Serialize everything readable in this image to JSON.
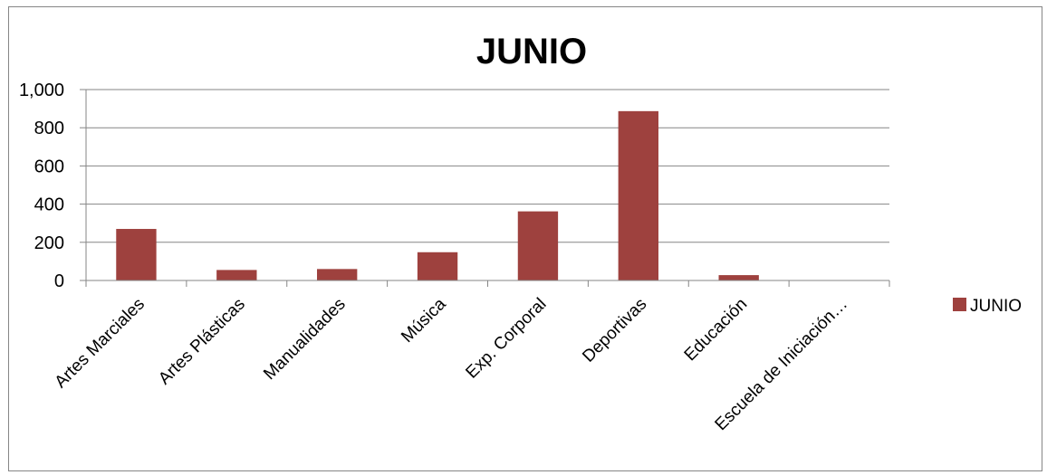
{
  "chart_data": {
    "type": "bar",
    "title": "JUNIO",
    "xlabel": "",
    "ylabel": "",
    "categories": [
      "Artes Marciales",
      "Artes Plásticas",
      "Manualidades",
      "Música",
      "Exp. Corporal",
      "Deportivas",
      "Educación",
      "Escuela de Iniciación…"
    ],
    "series": [
      {
        "name": "JUNIO",
        "values": [
          270,
          55,
          60,
          148,
          362,
          887,
          28,
          0
        ],
        "color": "#9E413E"
      }
    ],
    "ylim": [
      0,
      1000
    ],
    "yticks": [
      0,
      200,
      400,
      600,
      800,
      1000
    ],
    "ytick_labels": [
      "0",
      "200",
      "400",
      "600",
      "800",
      "1,000"
    ],
    "grid": true,
    "legend_position": "right",
    "gridline_color": "#868686"
  }
}
